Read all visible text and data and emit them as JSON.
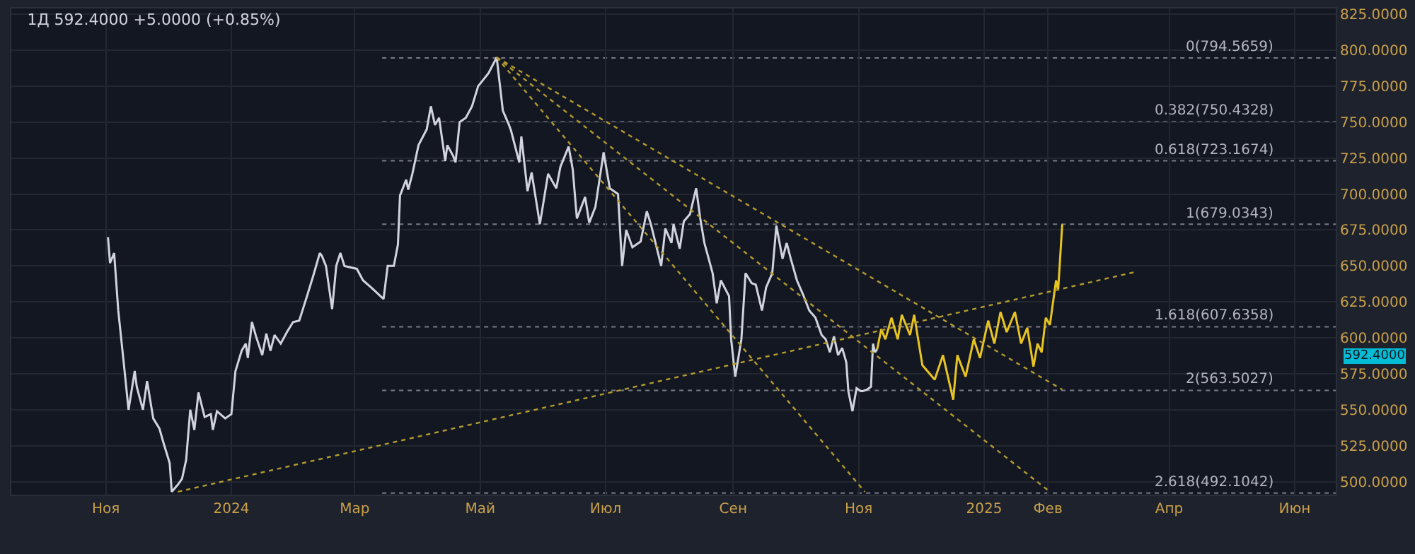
{
  "chart_data": {
    "type": "line",
    "title": "1Д 592.4000 +5.0000 (+0.85%)",
    "grid": true,
    "xlim": [
      "2023-09-16",
      "2025-06-21"
    ],
    "xticks": [
      {
        "value": "2023-11-01",
        "label": "Ноя"
      },
      {
        "value": "2024-01-01",
        "label": "2024"
      },
      {
        "value": "2024-03-01",
        "label": "Мар"
      },
      {
        "value": "2024-05-01",
        "label": "Май"
      },
      {
        "value": "2024-07-01",
        "label": "Июл"
      },
      {
        "value": "2024-09-01",
        "label": "Сен"
      },
      {
        "value": "2024-11-01",
        "label": "Ноя"
      },
      {
        "value": "2025-01-01",
        "label": "2025"
      },
      {
        "value": "2025-02-01",
        "label": "Фев"
      },
      {
        "value": "2025-04-01",
        "label": "Апр"
      },
      {
        "value": "2025-06-01",
        "label": "Июн"
      }
    ],
    "ylim": [
      491,
      829
    ],
    "yticks": [
      {
        "value": 500,
        "label": "500.0000"
      },
      {
        "value": 525,
        "label": "525.0000"
      },
      {
        "value": 550,
        "label": "550.0000"
      },
      {
        "value": 575,
        "label": "575.0000"
      },
      {
        "value": 600,
        "label": "600.0000"
      },
      {
        "value": 625,
        "label": "625.0000"
      },
      {
        "value": 650,
        "label": "650.0000"
      },
      {
        "value": 675,
        "label": "675.0000"
      },
      {
        "value": 700,
        "label": "700.0000"
      },
      {
        "value": 725,
        "label": "725.0000"
      },
      {
        "value": 750,
        "label": "750.0000"
      },
      {
        "value": 775,
        "label": "775.0000"
      },
      {
        "value": 800,
        "label": "800.0000"
      },
      {
        "value": 825,
        "label": "825.0000"
      }
    ],
    "series": [
      {
        "color": "#d1d4dc",
        "x": [
          "2023-11-02",
          "2023-11-03",
          "2023-11-05",
          "2023-11-07",
          "2023-11-10",
          "2023-11-12",
          "2023-11-15",
          "2023-11-16",
          "2023-11-19",
          "2023-11-21",
          "2023-11-24",
          "2023-11-27",
          "2023-11-29",
          "2023-12-02",
          "2023-12-03",
          "2023-12-06",
          "2023-12-08",
          "2023-12-10",
          "2023-12-12",
          "2023-12-14",
          "2023-12-16",
          "2023-12-19",
          "2023-12-22",
          "2023-12-23",
          "2023-12-25",
          "2023-12-29",
          "2024-01-01",
          "2024-01-03",
          "2024-01-06",
          "2024-01-08",
          "2024-01-09",
          "2024-01-11",
          "2024-01-13",
          "2024-01-16",
          "2024-01-18",
          "2024-01-20",
          "2024-01-22",
          "2024-01-25",
          "2024-01-28",
          "2024-01-31",
          "2024-02-03",
          "2024-02-05",
          "2024-02-07",
          "2024-02-10",
          "2024-02-13",
          "2024-02-14",
          "2024-02-16",
          "2024-02-19",
          "2024-02-21",
          "2024-02-23",
          "2024-02-25",
          "2024-03-02",
          "2024-03-05",
          "2024-03-09",
          "2024-03-15",
          "2024-03-17",
          "2024-03-20",
          "2024-03-22",
          "2024-03-23",
          "2024-03-26",
          "2024-03-27",
          "2024-03-29",
          "2024-04-01",
          "2024-04-05",
          "2024-04-07",
          "2024-04-09",
          "2024-04-11",
          "2024-04-14",
          "2024-04-15",
          "2024-04-18",
          "2024-04-19",
          "2024-04-21",
          "2024-04-24",
          "2024-04-27",
          "2024-04-30",
          "2024-05-05",
          "2024-05-09",
          "2024-05-12",
          "2024-05-15",
          "2024-05-16",
          "2024-05-20",
          "2024-05-21",
          "2024-05-24",
          "2024-05-26",
          "2024-05-30",
          "2024-06-03",
          "2024-06-07",
          "2024-06-09",
          "2024-06-13",
          "2024-06-15",
          "2024-06-17",
          "2024-06-21",
          "2024-06-23",
          "2024-06-26",
          "2024-06-30",
          "2024-07-03",
          "2024-07-05",
          "2024-07-07",
          "2024-07-09",
          "2024-07-11",
          "2024-07-14",
          "2024-07-18",
          "2024-07-21",
          "2024-07-23",
          "2024-07-28",
          "2024-07-30",
          "2024-08-02",
          "2024-08-03",
          "2024-08-06",
          "2024-08-08",
          "2024-08-11",
          "2024-08-14",
          "2024-08-16",
          "2024-08-18",
          "2024-08-22",
          "2024-08-24",
          "2024-08-26",
          "2024-08-30",
          "2024-08-31",
          "2024-09-02",
          "2024-09-05",
          "2024-09-07",
          "2024-09-10",
          "2024-09-12",
          "2024-09-15",
          "2024-09-17",
          "2024-09-20",
          "2024-09-22",
          "2024-09-25",
          "2024-09-27",
          "2024-09-29",
          "2024-10-02",
          "2024-10-05",
          "2024-10-08",
          "2024-10-11",
          "2024-10-14",
          "2024-10-16",
          "2024-10-18",
          "2024-10-20",
          "2024-10-22",
          "2024-10-24",
          "2024-10-26",
          "2024-10-27",
          "2024-10-29",
          "2024-10-31",
          "2024-11-02",
          "2024-11-03",
          "2024-11-05",
          "2024-11-07",
          "2024-11-08",
          "2024-11-09",
          "2024-11-10"
        ],
        "values": [
          670,
          652,
          659,
          619,
          578,
          550,
          577,
          566,
          550,
          570,
          544,
          537,
          527,
          513,
          493,
          498,
          502,
          515,
          550,
          536,
          562,
          545,
          547,
          536,
          549,
          544,
          547,
          577,
          591,
          596,
          586,
          611,
          601,
          588,
          603,
          591,
          602,
          596,
          604,
          611,
          612,
          621,
          630,
          644,
          659,
          657,
          650,
          620,
          650,
          659,
          650,
          648,
          640,
          635,
          627,
          650,
          650,
          665,
          699,
          710,
          703,
          714,
          734,
          745,
          761,
          748,
          753,
          723,
          734,
          726,
          722,
          750,
          753,
          761,
          775,
          784,
          795,
          758,
          748,
          744,
          722,
          740,
          702,
          715,
          679,
          714,
          704,
          719,
          733,
          717,
          683,
          698,
          680,
          691,
          729,
          704,
          702,
          700,
          650,
          675,
          663,
          667,
          688,
          679,
          650,
          676,
          666,
          679,
          662,
          681,
          686,
          704,
          683,
          666,
          645,
          624,
          640,
          629,
          599,
          573,
          599,
          645,
          638,
          637,
          619,
          635,
          645,
          678,
          655,
          666,
          655,
          640,
          630,
          619,
          614,
          602,
          599,
          590,
          601,
          588,
          593,
          583,
          563,
          549,
          565,
          563,
          563,
          564,
          566,
          596,
          590,
          592
        ]
      },
      {
        "color": "#e8c422",
        "x": [
          "2024-11-10",
          "2024-11-12",
          "2024-11-14",
          "2024-11-17",
          "2024-11-20",
          "2024-11-22",
          "2024-11-26",
          "2024-11-28",
          "2024-12-02",
          "2024-12-08",
          "2024-12-12",
          "2024-12-17",
          "2024-12-19",
          "2024-12-23",
          "2024-12-27",
          "2024-12-30",
          "2025-01-03",
          "2025-01-06",
          "2025-01-09",
          "2025-01-12",
          "2025-01-16",
          "2025-01-19",
          "2025-01-22",
          "2025-01-25",
          "2025-01-27",
          "2025-01-29",
          "2025-01-31",
          "2025-02-02",
          "2025-02-05",
          "2025-02-06",
          "2025-02-08"
        ],
        "values": [
          592,
          606,
          599,
          614,
          599,
          616,
          602,
          616,
          581,
          571,
          588,
          557,
          588,
          573,
          599,
          586,
          612,
          596,
          618,
          604,
          618,
          596,
          607,
          580,
          596,
          590,
          614,
          609,
          640,
          633,
          679
        ]
      },
      {
        "type": "line",
        "color": "#b39b2e",
        "line_style": "dotted",
        "x": [
          "2023-12-06",
          "2025-03-16"
        ],
        "values": [
          493,
          646
        ]
      },
      {
        "type": "line",
        "color": "#b39b2e",
        "line_style": "dotted",
        "x": [
          "2024-05-09",
          "2024-11-04"
        ],
        "values": [
          795,
          493
        ]
      },
      {
        "type": "line",
        "color": "#b39b2e",
        "line_style": "dotted",
        "x": [
          "2024-05-09",
          "2025-02-02"
        ],
        "values": [
          795,
          493
        ]
      },
      {
        "type": "line",
        "color": "#b39b2e",
        "line_style": "dotted",
        "x": [
          "2024-05-09",
          "2025-02-08"
        ],
        "values": [
          795,
          564
        ]
      }
    ],
    "ref_lines": [
      {
        "axis": "y",
        "value": 794.5659,
        "label": "0(794.5659)",
        "color": "#787b86",
        "line_style": "dotted"
      },
      {
        "axis": "y",
        "value": 750.4328,
        "label": "0.382(750.4328)",
        "color": "#787b86",
        "line_style": "dotted"
      },
      {
        "axis": "y",
        "value": 723.1674,
        "label": "0.618(723.1674)",
        "color": "#787b86",
        "line_style": "dotted"
      },
      {
        "axis": "y",
        "value": 679.0343,
        "label": "1(679.0343)",
        "color": "#787b86",
        "line_style": "dotted"
      },
      {
        "axis": "y",
        "value": 607.6358,
        "label": "1.618(607.6358)",
        "color": "#787b86",
        "line_style": "dotted"
      },
      {
        "axis": "y",
        "value": 563.5027,
        "label": "2(563.5027)",
        "color": "#787b86",
        "line_style": "dotted"
      },
      {
        "axis": "y",
        "value": 492.1042,
        "label": "2.618(492.1042)",
        "color": "#787b86",
        "line_style": "dotted"
      }
    ],
    "annotations": [
      "592.4000"
    ]
  }
}
